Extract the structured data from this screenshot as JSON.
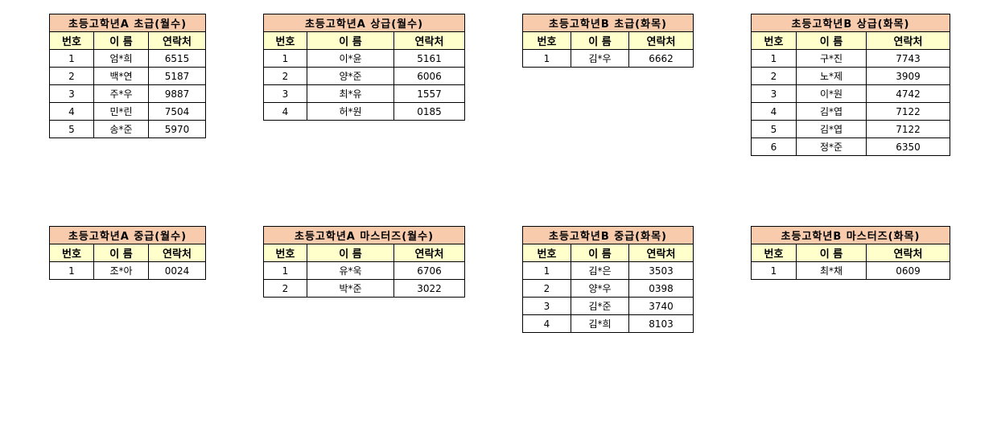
{
  "colors": {
    "title_bg": "#F8CBAD",
    "header_bg": "#FFFFCC"
  },
  "headers": [
    "번호",
    "이 름",
    "연락처"
  ],
  "tables": [
    {
      "title": "초등고학년A 초급(월수)",
      "rows": [
        [
          "1",
          "엄*희",
          "6515"
        ],
        [
          "2",
          "백*연",
          "5187"
        ],
        [
          "3",
          "주*우",
          "9887"
        ],
        [
          "4",
          "민*린",
          "7504"
        ],
        [
          "5",
          "송*준",
          "5970"
        ]
      ]
    },
    {
      "title": "초등고학년A 상급(월수)",
      "rows": [
        [
          "1",
          "이*윤",
          "5161"
        ],
        [
          "2",
          "양*준",
          "6006"
        ],
        [
          "3",
          "최*유",
          "1557"
        ],
        [
          "4",
          "허*원",
          "0185"
        ]
      ]
    },
    {
      "title": "초등고학년B 초급(화목)",
      "rows": [
        [
          "1",
          "김*우",
          "6662"
        ]
      ]
    },
    {
      "title": "초등고학년B 상급(화목)",
      "rows": [
        [
          "1",
          "구*진",
          "7743"
        ],
        [
          "2",
          "노*제",
          "3909"
        ],
        [
          "3",
          "이*원",
          "4742"
        ],
        [
          "4",
          "김*엽",
          "7122"
        ],
        [
          "5",
          "김*엽",
          "7122"
        ],
        [
          "6",
          "정*준",
          "6350"
        ]
      ]
    },
    {
      "title": "초등고학년A 중급(월수)",
      "rows": [
        [
          "1",
          "조*아",
          "0024"
        ]
      ]
    },
    {
      "title": "초등고학년A 마스터즈(월수)",
      "rows": [
        [
          "1",
          "유*욱",
          "6706"
        ],
        [
          "2",
          "박*준",
          "3022"
        ]
      ]
    },
    {
      "title": "초등고학년B 중급(화목)",
      "rows": [
        [
          "1",
          "김*은",
          "3503"
        ],
        [
          "2",
          "양*우",
          "0398"
        ],
        [
          "3",
          "김*준",
          "3740"
        ],
        [
          "4",
          "김*희",
          "8103"
        ]
      ]
    },
    {
      "title": "초등고학년B 마스터즈(화목)",
      "rows": [
        [
          "1",
          "최*채",
          "0609"
        ]
      ]
    }
  ]
}
